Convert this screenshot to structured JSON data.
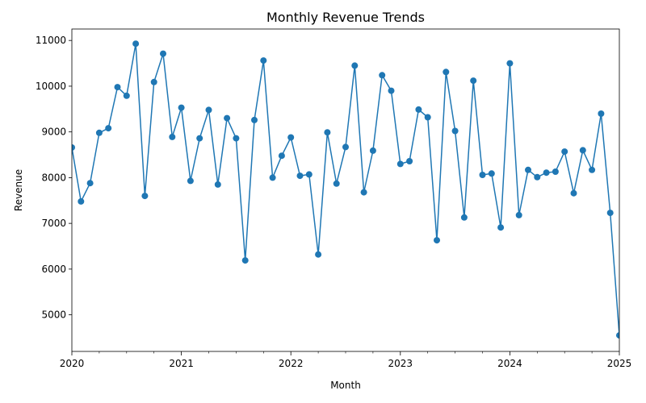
{
  "chart_data": {
    "type": "line",
    "title": "Monthly Revenue Trends",
    "xlabel": "Month",
    "ylabel": "Revenue",
    "color": "#1f77b4",
    "marker": "circle",
    "grid": false,
    "legend": "none",
    "xlim": [
      "2020-01",
      "2025-01"
    ],
    "ylim": [
      4200,
      11250
    ],
    "x_ticks": [
      "2020",
      "2021",
      "2022",
      "2023",
      "2024",
      "2025"
    ],
    "y_ticks": [
      5000,
      6000,
      7000,
      8000,
      9000,
      10000,
      11000
    ],
    "series": [
      {
        "x": [
          "2020-01",
          "2020-02",
          "2020-03",
          "2020-04",
          "2020-05",
          "2020-06",
          "2020-07",
          "2020-08",
          "2020-09",
          "2020-10",
          "2020-11",
          "2020-12",
          "2021-01",
          "2021-02",
          "2021-03",
          "2021-04",
          "2021-05",
          "2021-06",
          "2021-07",
          "2021-08",
          "2021-09",
          "2021-10",
          "2021-11",
          "2021-12",
          "2022-01",
          "2022-02",
          "2022-03",
          "2022-04",
          "2022-05",
          "2022-06",
          "2022-07",
          "2022-08",
          "2022-09",
          "2022-10",
          "2022-11",
          "2022-12",
          "2023-01",
          "2023-02",
          "2023-03",
          "2023-04",
          "2023-05",
          "2023-06",
          "2023-07",
          "2023-08",
          "2023-09",
          "2023-10",
          "2023-11",
          "2023-12",
          "2024-01",
          "2024-02",
          "2024-03",
          "2024-04",
          "2024-05",
          "2024-06",
          "2024-07",
          "2024-08",
          "2024-09",
          "2024-10",
          "2024-11",
          "2024-12",
          "2025-01"
        ],
        "values": [
          8660,
          7480,
          7880,
          8980,
          9080,
          9980,
          9790,
          10930,
          7600,
          10090,
          10710,
          8890,
          9530,
          7930,
          8860,
          9480,
          7850,
          9300,
          8860,
          6190,
          9260,
          10560,
          8000,
          8480,
          8880,
          8040,
          8070,
          6320,
          8990,
          7870,
          8670,
          10450,
          7680,
          8590,
          10240,
          9900,
          8300,
          8360,
          9490,
          9320,
          6630,
          10310,
          9020,
          7130,
          10120,
          8060,
          8090,
          6910,
          10500,
          7180,
          8170,
          8010,
          8110,
          8130,
          8570,
          7660,
          8600,
          8170,
          9400,
          7230,
          4550
        ]
      }
    ]
  }
}
